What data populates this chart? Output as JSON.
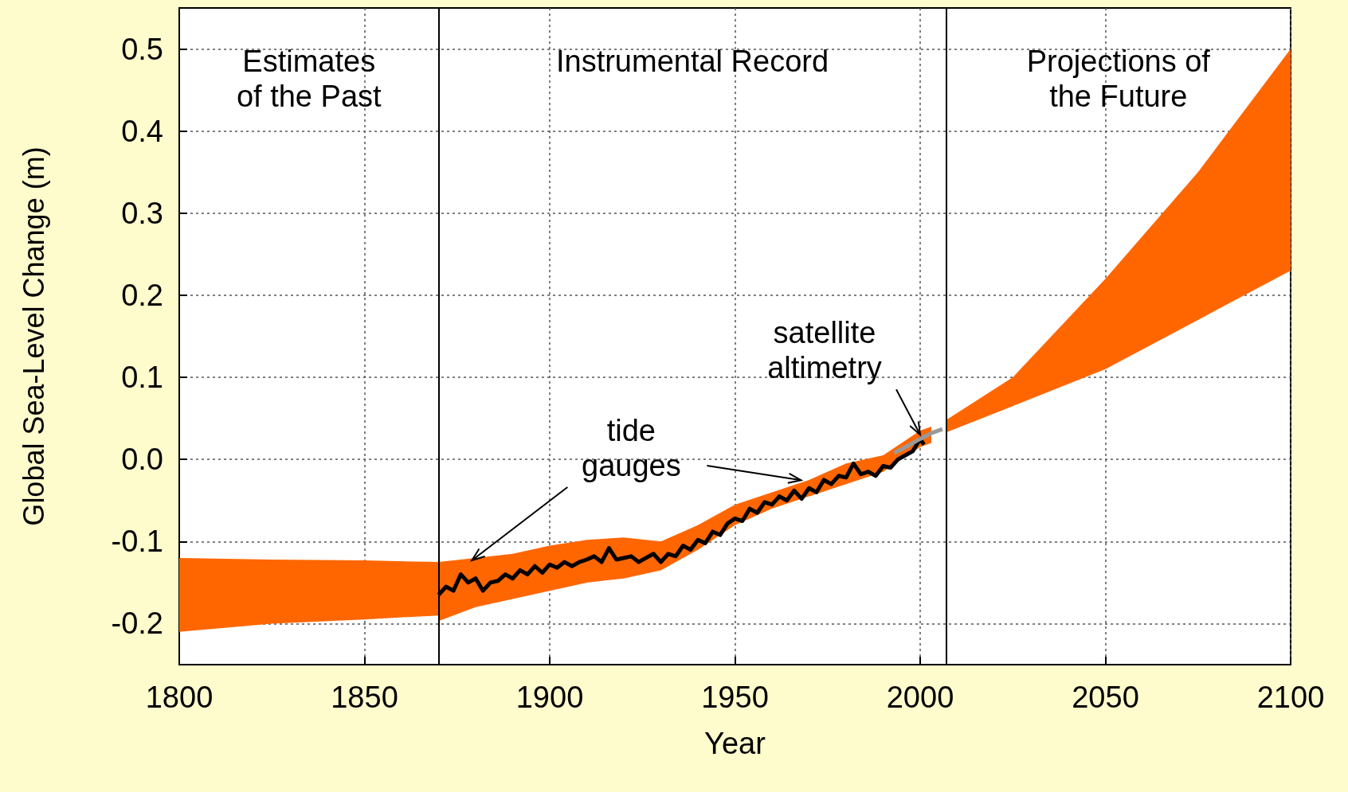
{
  "chart_data": {
    "type": "line",
    "xlabel": "Year",
    "ylabel": "Global Sea-Level Change (m)",
    "xlim": [
      1800,
      2100
    ],
    "xticks": [
      1800,
      1850,
      1900,
      1950,
      2000,
      2050,
      2100
    ],
    "ylim": [
      -0.25,
      0.55
    ],
    "yticks": [
      -0.2,
      -0.1,
      {
        "value": 0,
        "label": "0.0"
      },
      0.1,
      0.2,
      0.3,
      0.4,
      0.5
    ],
    "grid": true,
    "series": [
      {
        "type": "area",
        "color": "#ff6600",
        "x": [
          1800,
          1825,
          1850,
          1870
        ],
        "values": [
          null,
          null,
          null,
          null
        ],
        "lower": [
          -0.21,
          -0.2,
          -0.195,
          -0.19
        ],
        "upper": [
          -0.12,
          -0.122,
          -0.123,
          -0.125
        ]
      },
      {
        "type": "area",
        "color": "#ff6600",
        "x": [
          1870,
          1880,
          1890,
          1900,
          1910,
          1920,
          1930,
          1940,
          1950,
          1960,
          1970,
          1980,
          1990,
          2000,
          2003
        ],
        "values": [
          null,
          null,
          null,
          null,
          null,
          null,
          null,
          null,
          null,
          null,
          null,
          null,
          null,
          null,
          null
        ],
        "lower": [
          -0.197,
          -0.18,
          -0.17,
          -0.16,
          -0.15,
          -0.145,
          -0.135,
          -0.11,
          -0.08,
          -0.06,
          -0.045,
          -0.03,
          -0.015,
          0.015,
          0.02
        ],
        "upper": [
          -0.125,
          -0.12,
          -0.115,
          -0.105,
          -0.098,
          -0.095,
          -0.1,
          -0.08,
          -0.055,
          -0.04,
          -0.025,
          -0.005,
          0.005,
          0.035,
          0.04
        ]
      },
      {
        "type": "area",
        "color": "#ff6600",
        "x": [
          2007,
          2025,
          2050,
          2075,
          2100
        ],
        "values": [
          null,
          null,
          null,
          null,
          null
        ],
        "lower": [
          0.033,
          0.065,
          0.11,
          0.17,
          0.23
        ],
        "upper": [
          0.048,
          0.1,
          0.22,
          0.35,
          0.5
        ]
      },
      {
        "color": "#000000",
        "x": [
          1870,
          1872,
          1874,
          1876,
          1878,
          1880,
          1882,
          1884,
          1886,
          1888,
          1890,
          1892,
          1894,
          1896,
          1898,
          1900,
          1902,
          1904,
          1906,
          1908,
          1910,
          1912,
          1914,
          1916,
          1918,
          1920,
          1922,
          1924,
          1926,
          1928,
          1930,
          1932,
          1934,
          1936,
          1938,
          1940,
          1942,
          1944,
          1946,
          1948,
          1950,
          1952,
          1954,
          1956,
          1958,
          1960,
          1962,
          1964,
          1966,
          1968,
          1970,
          1972,
          1974,
          1976,
          1978,
          1980,
          1982,
          1984,
          1986,
          1988,
          1990,
          1992,
          1994,
          1996,
          1998,
          2000,
          2001
        ],
        "values": [
          -0.165,
          -0.155,
          -0.16,
          -0.14,
          -0.15,
          -0.145,
          -0.16,
          -0.15,
          -0.148,
          -0.14,
          -0.145,
          -0.135,
          -0.14,
          -0.13,
          -0.138,
          -0.128,
          -0.132,
          -0.125,
          -0.13,
          -0.125,
          -0.122,
          -0.118,
          -0.125,
          -0.108,
          -0.122,
          -0.12,
          -0.118,
          -0.125,
          -0.12,
          -0.115,
          -0.125,
          -0.115,
          -0.118,
          -0.105,
          -0.11,
          -0.098,
          -0.102,
          -0.088,
          -0.092,
          -0.078,
          -0.072,
          -0.075,
          -0.06,
          -0.065,
          -0.052,
          -0.055,
          -0.045,
          -0.05,
          -0.038,
          -0.048,
          -0.035,
          -0.04,
          -0.025,
          -0.03,
          -0.02,
          -0.022,
          -0.005,
          -0.018,
          -0.015,
          -0.02,
          -0.008,
          -0.01,
          0.0,
          0.005,
          0.01,
          0.025,
          0.018
        ]
      },
      {
        "color": "#999999",
        "x": [
          1993,
          1996,
          1998,
          2000,
          2003,
          2006
        ],
        "values": [
          0.008,
          0.015,
          0.02,
          0.025,
          0.032,
          0.037
        ]
      }
    ],
    "ref_lines": [
      {
        "axis": "x",
        "value": 1870,
        "color": "#000000"
      },
      {
        "axis": "x",
        "value": 2007,
        "color": "#000000"
      }
    ],
    "annotations": [
      "Estimates\nof the Past",
      "Instrumental Record",
      "Projections of\nthe Future",
      {
        "text": "tide\ngauges",
        "x": 1879,
        "y": -0.123
      },
      {
        "text": "satellite\naltimetry",
        "x": 2000,
        "y": 0.03
      }
    ]
  }
}
